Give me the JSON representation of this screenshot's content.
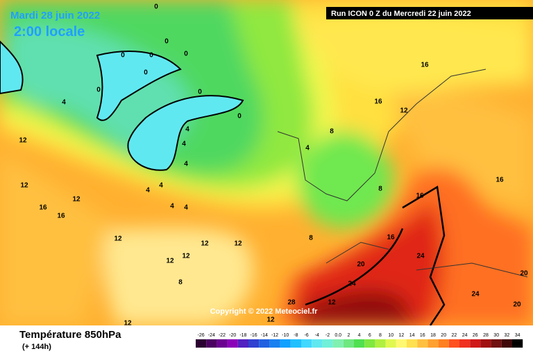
{
  "header": {
    "date": "Mardi 28 juin 2022",
    "time": "2:00 locale",
    "run": "Run ICON 0 Z du Mercredi 22 juin 2022"
  },
  "footer": {
    "title": "Température 850hPa",
    "lead": "(+ 144h)",
    "copyright": "Copyright © 2022 Meteociel.fr"
  },
  "scale": {
    "ticks": [
      -26,
      -24,
      -22,
      -20,
      -18,
      -16,
      -14,
      -12,
      -10,
      -8,
      -6,
      -4,
      -2,
      {
        "value": 0,
        "label": "0.0"
      },
      2,
      4,
      6,
      8,
      10,
      12,
      14,
      16,
      18,
      20,
      22,
      24,
      26,
      28,
      30,
      32,
      34
    ],
    "colors": [
      "#2a0030",
      "#4a0060",
      "#6a0090",
      "#8a00b8",
      "#5020c0",
      "#3040d0",
      "#2060e0",
      "#1880f0",
      "#10a0ff",
      "#20c0ff",
      "#40d8ff",
      "#60e8f0",
      "#70f0d8",
      "#80f0b0",
      "#70e880",
      "#50e050",
      "#80e840",
      "#b0f040",
      "#e0f850",
      "#fff870",
      "#ffe050",
      "#ffc040",
      "#ffa030",
      "#ff8020",
      "#ff5020",
      "#f03020",
      "#d01818",
      "#a01010",
      "#701010",
      "#400808",
      "#000000"
    ]
  },
  "contour_labels": [
    "0",
    "0",
    "0",
    "0",
    "0",
    "0",
    "0",
    "0",
    "0",
    "4",
    "4",
    "4",
    "4",
    "4",
    "4",
    "4",
    "4",
    "8",
    "8",
    "8",
    "12",
    "12",
    "12",
    "12",
    "12",
    "12",
    "12",
    "12",
    "12",
    "16",
    "16",
    "16",
    "16",
    "16",
    "16",
    "20",
    "20",
    "20",
    "24",
    "24",
    "24",
    "28",
    "12",
    "12",
    "16",
    "4",
    "8",
    "12"
  ]
}
